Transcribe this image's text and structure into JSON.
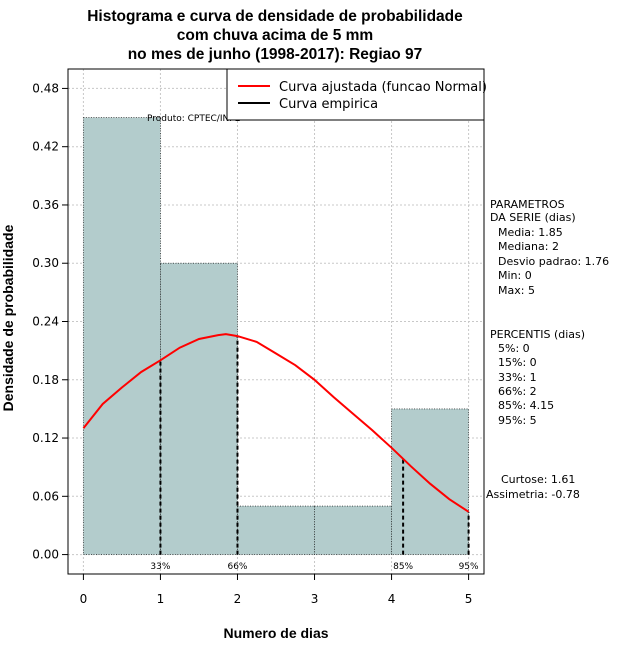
{
  "chart_data": {
    "type": "bar",
    "title_lines": [
      "Histograma e curva de densidade de probabilidade",
      "com chuva acima de 5 mm",
      "no mes de junho (1998-2017): Regiao 97"
    ],
    "xlabel": "Numero de dias",
    "ylabel": "Densidade de probabilidade",
    "xlim": [
      -0.2,
      5.2
    ],
    "ylim": [
      -0.02,
      0.5
    ],
    "x_ticks": [
      0,
      1,
      2,
      3,
      4,
      5
    ],
    "x_tick_labels": [
      "0",
      "1",
      "2",
      "3",
      "4",
      "5"
    ],
    "y_ticks": [
      0.0,
      0.06,
      0.12,
      0.18,
      0.24,
      0.3,
      0.36,
      0.42,
      0.48
    ],
    "y_tick_labels": [
      "0.00",
      "0.06",
      "0.12",
      "0.18",
      "0.24",
      "0.30",
      "0.36",
      "0.42",
      "0.48"
    ],
    "bins": [
      {
        "x0": 0,
        "x1": 1,
        "density": 0.45
      },
      {
        "x0": 1,
        "x1": 2,
        "density": 0.3
      },
      {
        "x0": 2,
        "x1": 3,
        "density": 0.05
      },
      {
        "x0": 3,
        "x1": 4,
        "density": 0.05
      },
      {
        "x0": 4,
        "x1": 5,
        "density": 0.15
      }
    ],
    "bar_color": "#b3cccc",
    "curve_color": "#ff0000",
    "curve": {
      "x": [
        0,
        0.25,
        0.5,
        0.75,
        1.0,
        1.25,
        1.5,
        1.75,
        1.85,
        2.0,
        2.25,
        2.5,
        2.75,
        3.0,
        3.25,
        3.5,
        3.75,
        4.0,
        4.25,
        4.5,
        4.75,
        5.0
      ],
      "y": [
        0.13,
        0.155,
        0.172,
        0.188,
        0.2,
        0.213,
        0.222,
        0.226,
        0.227,
        0.225,
        0.219,
        0.207,
        0.195,
        0.18,
        0.162,
        0.145,
        0.128,
        0.11,
        0.091,
        0.073,
        0.057,
        0.044
      ]
    },
    "percentile_markers": [
      {
        "x": 1.0,
        "label": "33%"
      },
      {
        "x": 2.0,
        "label": "66%"
      },
      {
        "x": 4.15,
        "label": "85%"
      },
      {
        "x": 5.0,
        "label": "95%"
      }
    ],
    "legend": [
      {
        "label": "Curva ajustada (funcao Normal)",
        "color": "#ff0000"
      },
      {
        "label": "Curva empirica",
        "color": "#000000"
      }
    ],
    "legend_position": "top-right",
    "grid": true,
    "annotation": "Produto: CPTEC/INPE"
  },
  "side_panel": {
    "parametros": [
      "PARAMETROS",
      "DA SERIE (dias)",
      "Media: 1.85",
      "Mediana: 2",
      "Desvio padrao: 1.76",
      "Min: 0",
      "Max: 5"
    ],
    "percentis": [
      "PERCENTIS (dias)",
      "5%: 0",
      "15%: 0",
      "33%: 1",
      "66%: 2",
      "85%: 4.15",
      "95%: 5"
    ],
    "curtose": "Curtose: 1.61",
    "assimetria": "Assimetria: -0.78"
  }
}
